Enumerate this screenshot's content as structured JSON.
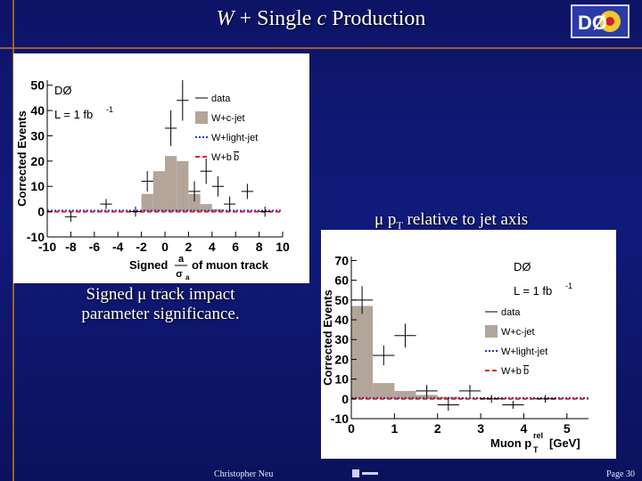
{
  "slide": {
    "title_italic": "W",
    "title_mid": " + Single ",
    "title_italic2": "c",
    "title_end": " Production",
    "caption_left": "Signed μ track impact parameter significance.",
    "caption_right": "μ p",
    "caption_right_sub": "T",
    "caption_right_end": " relative to jet axis",
    "footer_author": "Christopher Neu",
    "footer_page": "Page 30",
    "logo_text": "DØ"
  },
  "colors": {
    "wc": "#b3a59a",
    "wlight": "#2233cc",
    "wbb": "#dd2222",
    "data": "#000000"
  },
  "chart_data": [
    {
      "type": "bar",
      "ylabel": "Corrected Events",
      "xlabel_parts": [
        "Signed ",
        "a",
        "σ",
        "a",
        " of muon track"
      ],
      "xlim": [
        -10,
        10
      ],
      "ylim": [
        -10,
        52
      ],
      "xticks": [
        -10,
        -8,
        -6,
        -4,
        -2,
        0,
        2,
        4,
        6,
        8,
        10
      ],
      "yticks": [
        -10,
        0,
        10,
        20,
        30,
        40,
        50
      ],
      "experiment": "DØ",
      "lumi": "L = 1 fb",
      "lumi_sup": "-1",
      "legend": [
        "data",
        "W+c-jet",
        "W+light-jet",
        "W+b",
        "b"
      ],
      "wc_bins": [
        [
          -2,
          -1,
          7
        ],
        [
          -1,
          0,
          16
        ],
        [
          0,
          1,
          22
        ],
        [
          1,
          2,
          20
        ],
        [
          2,
          3,
          7
        ],
        [
          3,
          4,
          3
        ],
        [
          4,
          5,
          1
        ]
      ],
      "data": [
        [
          -8,
          -2,
          2
        ],
        [
          -5,
          3,
          2
        ],
        [
          -2.5,
          0,
          2
        ],
        [
          -1.5,
          12,
          4
        ],
        [
          0.5,
          33,
          7
        ],
        [
          1.5,
          44,
          8
        ],
        [
          2.5,
          8,
          4
        ],
        [
          3.5,
          16,
          5
        ],
        [
          4.5,
          10,
          4
        ],
        [
          5.5,
          3,
          3
        ],
        [
          7,
          8,
          3
        ],
        [
          8.5,
          0,
          2
        ]
      ]
    },
    {
      "type": "bar",
      "ylabel": "Corrected Events",
      "xlabel": "Muon p",
      "xlabel_sup": "rel",
      "xlabel_sub": "T",
      "xlabel_end": " [GeV]",
      "xlim": [
        0,
        5.5
      ],
      "ylim": [
        -10,
        72
      ],
      "xticks": [
        0,
        1,
        2,
        3,
        4,
        5
      ],
      "yticks": [
        -10,
        0,
        10,
        20,
        30,
        40,
        50,
        60,
        70
      ],
      "experiment": "DØ",
      "lumi": "L = 1 fb",
      "lumi_sup": "-1",
      "legend": [
        "data",
        "W+c-jet",
        "W+light-jet",
        "W+b",
        "b"
      ],
      "wc_bins": [
        [
          0,
          0.5,
          47
        ],
        [
          0.5,
          1,
          8
        ],
        [
          1,
          1.5,
          4
        ],
        [
          1.5,
          2,
          2
        ],
        [
          2,
          2.5,
          1
        ],
        [
          2.5,
          3,
          0.5
        ]
      ],
      "data": [
        [
          0.25,
          50,
          7
        ],
        [
          0.75,
          22,
          5
        ],
        [
          1.25,
          32,
          6
        ],
        [
          1.75,
          4,
          3
        ],
        [
          2.25,
          -3,
          3
        ],
        [
          2.75,
          4,
          3
        ],
        [
          3.25,
          0,
          2
        ],
        [
          3.75,
          -3,
          2
        ],
        [
          4.5,
          0,
          2
        ]
      ]
    }
  ]
}
